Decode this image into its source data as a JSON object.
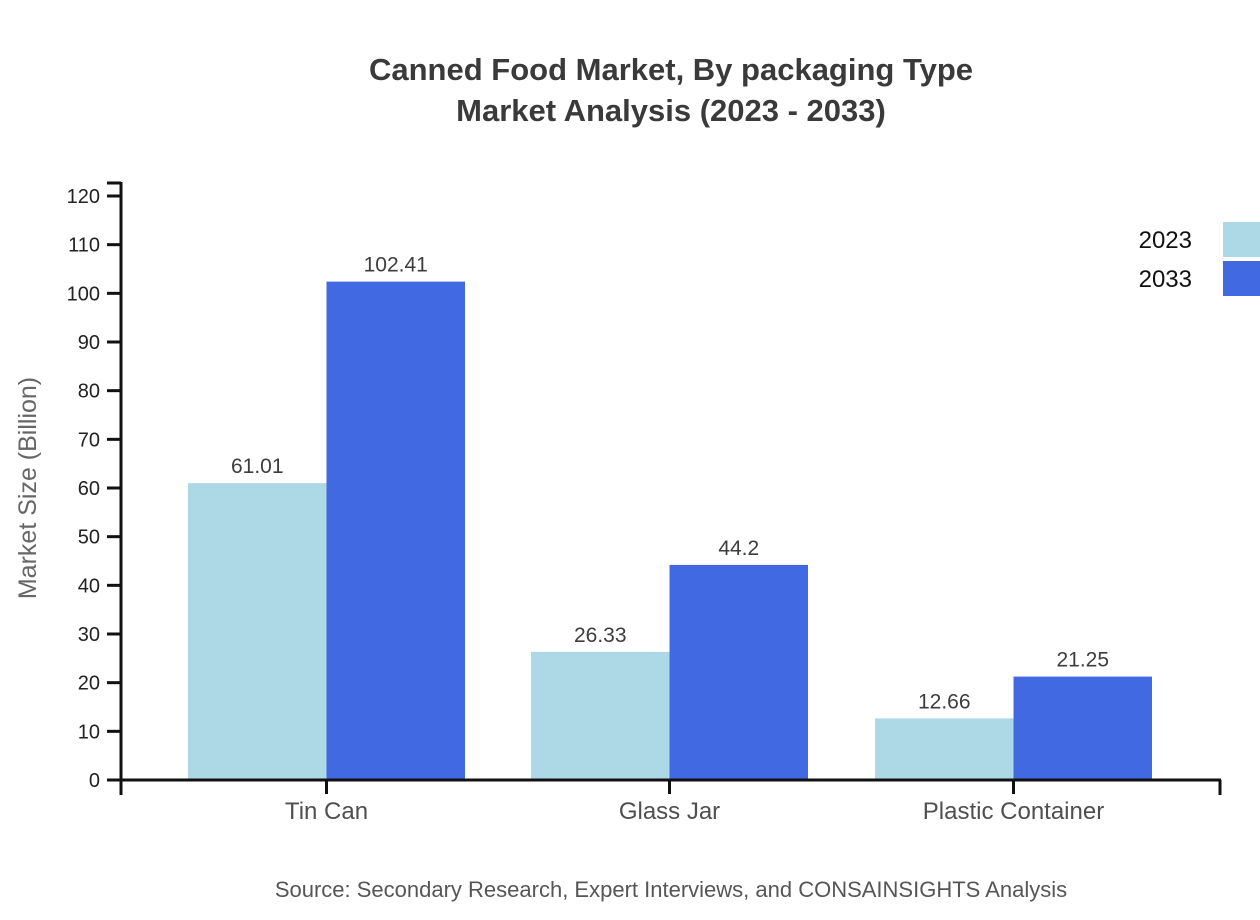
{
  "title": {
    "line1": "Canned Food Market, By packaging Type",
    "line2": "Market Analysis (2023 - 2033)"
  },
  "source_note": "Source: Secondary Research, Expert Interviews, and CONSAINSIGHTS Analysis",
  "chart_data": {
    "type": "bar",
    "title": "Canned Food Market, By packaging Type Market Analysis (2023 - 2033)",
    "categories": [
      "Tin Can",
      "Glass Jar",
      "Plastic Container"
    ],
    "series": [
      {
        "name": "2023",
        "color": "#ADD8E6",
        "values": [
          61.01,
          26.33,
          12.66
        ],
        "value_labels": [
          "61.01",
          "26.33",
          "12.66"
        ]
      },
      {
        "name": "2033",
        "color": "#4169E1",
        "values": [
          102.41,
          44.2,
          21.25
        ],
        "value_labels": [
          "102.41",
          "44.2",
          "21.25"
        ]
      }
    ],
    "xlabel": "",
    "ylabel": "Market Size (Billion)",
    "ylim": [
      0,
      120
    ],
    "yticks": [
      0,
      10,
      20,
      30,
      40,
      50,
      60,
      70,
      80,
      90,
      100,
      110,
      120
    ],
    "grid": false,
    "legend_position": "top-right",
    "bar_value_labels_shown": true
  },
  "colors": {
    "series_2023": "#ADD8E6",
    "series_2033": "#4169E1",
    "axis": "#111111",
    "title_text": "#3a3a3a",
    "tick_label": "#222222",
    "category_label": "#4f4f4f",
    "value_label": "#3d3d3d",
    "axis_title": "#666666",
    "legend_text": "#111111",
    "source_text": "#565656",
    "background": "#ffffff"
  }
}
